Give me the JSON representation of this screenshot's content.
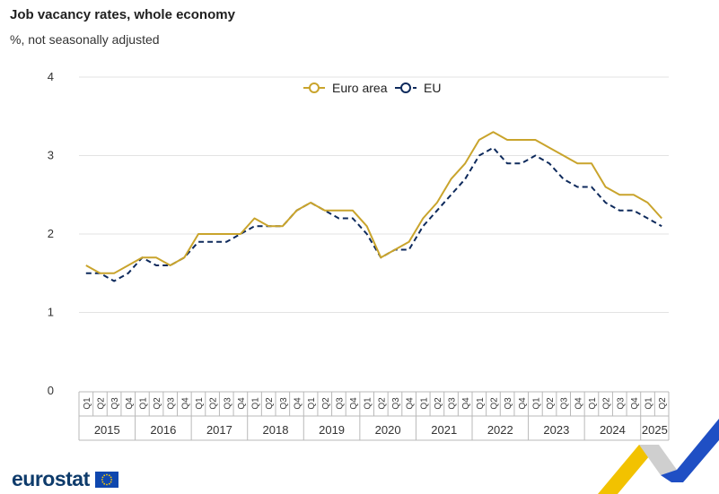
{
  "header": {
    "title": "Job vacancy rates, whole economy",
    "subtitle": "%, not seasonally adjusted"
  },
  "logo": {
    "text": "eurostat",
    "flag_icon": "eu-flag-icon"
  },
  "colors": {
    "euro_area": "#c9a42c",
    "eu": "#0e2a5c",
    "grid": "#e3e3e3",
    "axis_text": "#333333",
    "tick_box": "#b9b9b9",
    "corner_yellow": "#f2c200",
    "corner_grey": "#cfcfcf",
    "corner_blue": "#1f4fc4"
  },
  "chart_data": {
    "type": "line",
    "title": "Job vacancy rates, whole economy",
    "subtitle": "%, not seasonally adjusted",
    "xlabel": "",
    "ylabel": "",
    "ylim": [
      0,
      4
    ],
    "yticks": [
      0,
      1,
      2,
      3,
      4
    ],
    "grid": true,
    "legend_position": "top-center",
    "quarters": [
      "Q1",
      "Q2",
      "Q3",
      "Q4",
      "Q1",
      "Q2",
      "Q3",
      "Q4",
      "Q1",
      "Q2",
      "Q3",
      "Q4",
      "Q1",
      "Q2",
      "Q3",
      "Q4",
      "Q1",
      "Q2",
      "Q3",
      "Q4",
      "Q1",
      "Q2",
      "Q3",
      "Q4",
      "Q1",
      "Q2",
      "Q3",
      "Q4",
      "Q1",
      "Q2",
      "Q3",
      "Q4",
      "Q1",
      "Q2",
      "Q3",
      "Q4",
      "Q1",
      "Q2",
      "Q3",
      "Q4",
      "Q1",
      "Q2"
    ],
    "years": [
      {
        "label": "2015",
        "quarters": 4
      },
      {
        "label": "2016",
        "quarters": 4
      },
      {
        "label": "2017",
        "quarters": 4
      },
      {
        "label": "2018",
        "quarters": 4
      },
      {
        "label": "2019",
        "quarters": 4
      },
      {
        "label": "2020",
        "quarters": 4
      },
      {
        "label": "2021",
        "quarters": 4
      },
      {
        "label": "2022",
        "quarters": 4
      },
      {
        "label": "2023",
        "quarters": 4
      },
      {
        "label": "2024",
        "quarters": 4
      },
      {
        "label": "2025",
        "quarters": 2
      }
    ],
    "series": [
      {
        "name": "Euro area",
        "style": "solid",
        "values": [
          1.6,
          1.5,
          1.5,
          1.6,
          1.7,
          1.7,
          1.6,
          1.7,
          2.0,
          2.0,
          2.0,
          2.0,
          2.2,
          2.1,
          2.1,
          2.3,
          2.4,
          2.3,
          2.3,
          2.3,
          2.1,
          1.7,
          1.8,
          1.9,
          2.2,
          2.4,
          2.7,
          2.9,
          3.2,
          3.3,
          3.2,
          3.2,
          3.2,
          3.1,
          3.0,
          2.9,
          2.9,
          2.6,
          2.5,
          2.5,
          2.4,
          2.2
        ]
      },
      {
        "name": "EU",
        "style": "dashed",
        "values": [
          1.5,
          1.5,
          1.4,
          1.5,
          1.7,
          1.6,
          1.6,
          1.7,
          1.9,
          1.9,
          1.9,
          2.0,
          2.1,
          2.1,
          2.1,
          2.3,
          2.4,
          2.3,
          2.2,
          2.2,
          2.0,
          1.7,
          1.8,
          1.8,
          2.1,
          2.3,
          2.5,
          2.7,
          3.0,
          3.1,
          2.9,
          2.9,
          3.0,
          2.9,
          2.7,
          2.6,
          2.6,
          2.4,
          2.3,
          2.3,
          2.2,
          2.1
        ]
      }
    ]
  }
}
